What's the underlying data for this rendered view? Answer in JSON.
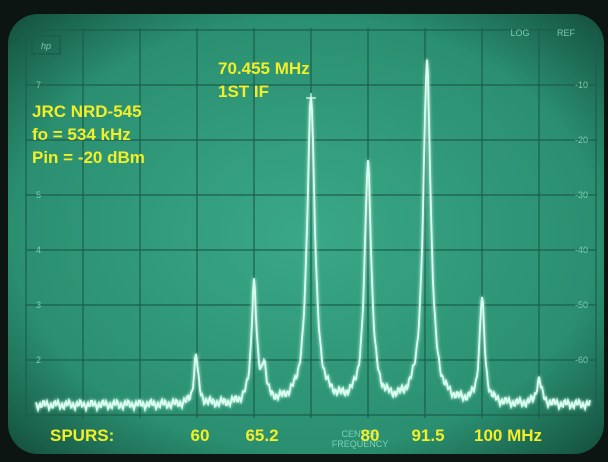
{
  "screen": {
    "badge": "hp",
    "log": "LOG",
    "ref": "REF",
    "left_scale": [
      "7",
      "5",
      "4",
      "3",
      "2"
    ],
    "right_scale": [
      "-10",
      "-20",
      "-30",
      "-40",
      "-50",
      "-60"
    ],
    "center": "CENTER",
    "frequency": "FREQUENCY"
  },
  "annotations": {
    "if_freq": "70.455 MHz",
    "if_label": "1ST IF",
    "receiver": "JRC NRD-545",
    "fo": "fo = 534 kHz",
    "pin": "Pin = -20 dBm",
    "spurs": "SPURS:",
    "spur_labels": [
      "60",
      "65.2",
      "80",
      "91.5",
      "100 MHz"
    ]
  }
}
